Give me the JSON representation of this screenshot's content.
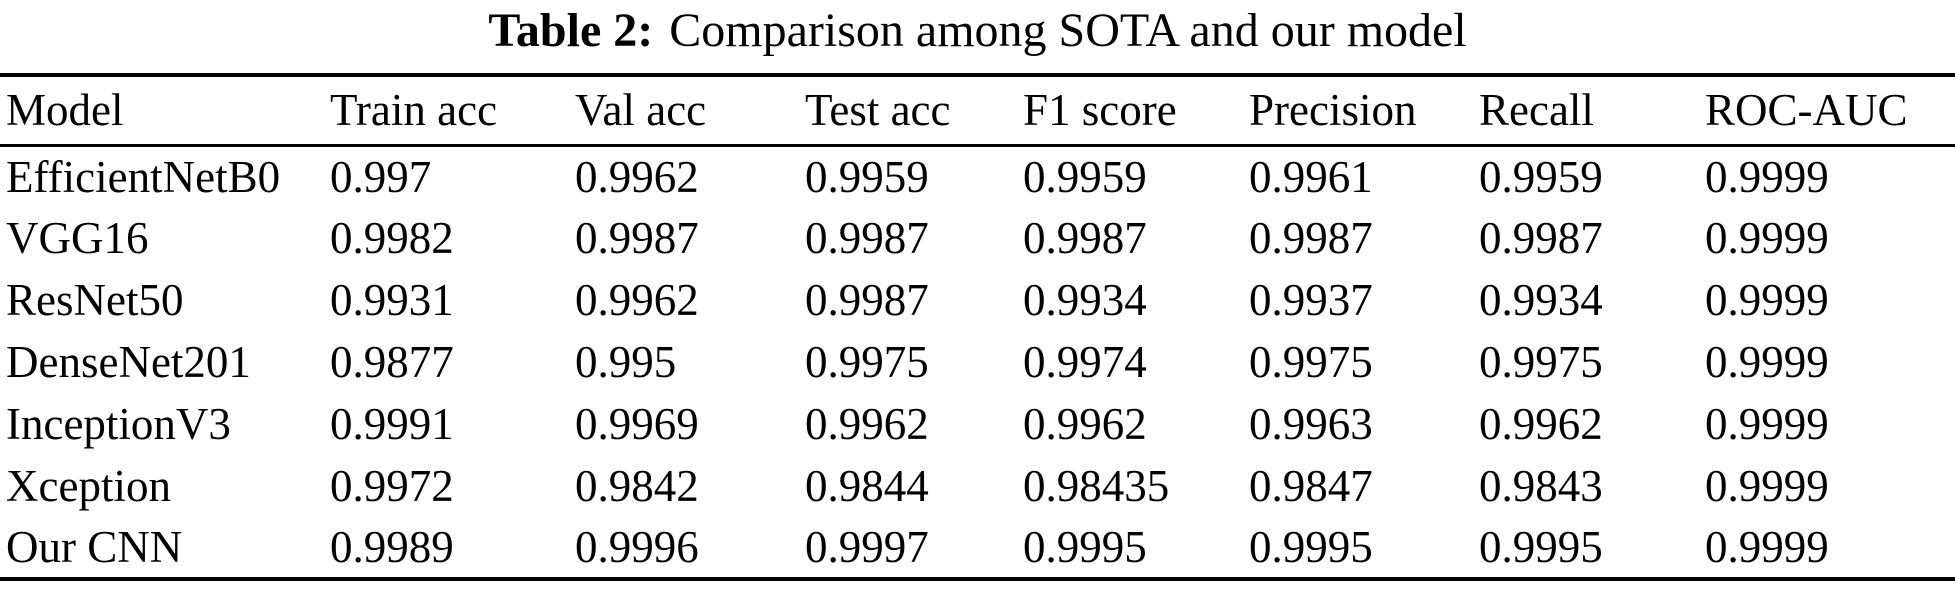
{
  "caption": {
    "label": "Table 2:",
    "text": "Comparison among SOTA and our model"
  },
  "table": {
    "columns": [
      "Model",
      "Train acc",
      "Val acc",
      "Test acc",
      "F1 score",
      "Precision",
      "Recall",
      "ROC-AUC"
    ],
    "rows": [
      {
        "model": "EfficientNetB0",
        "values": [
          "0.997",
          "0.9962",
          "0.9959",
          "0.9959",
          "0.9961",
          "0.9959",
          "0.9999"
        ]
      },
      {
        "model": "VGG16",
        "values": [
          "0.9982",
          "0.9987",
          "0.9987",
          "0.9987",
          "0.9987",
          "0.9987",
          "0.9999"
        ]
      },
      {
        "model": "ResNet50",
        "values": [
          "0.9931",
          "0.9962",
          "0.9987",
          "0.9934",
          "0.9937",
          "0.9934",
          "0.9999"
        ]
      },
      {
        "model": "DenseNet201",
        "values": [
          "0.9877",
          "0.995",
          "0.9975",
          "0.9974",
          "0.9975",
          "0.9975",
          "0.9999"
        ]
      },
      {
        "model": "InceptionV3",
        "values": [
          "0.9991",
          "0.9969",
          "0.9962",
          "0.9962",
          "0.9963",
          "0.9962",
          "0.9999"
        ]
      },
      {
        "model": "Xception",
        "values": [
          "0.9972",
          "0.9842",
          "0.9844",
          "0.98435",
          "0.9847",
          "0.9843",
          "0.9999"
        ]
      },
      {
        "model": "Our CNN",
        "values": [
          "0.9989",
          "0.9996",
          "0.9997",
          "0.9995",
          "0.9995",
          "0.9995",
          "0.9999"
        ]
      }
    ]
  },
  "colors": {
    "text": "#000000",
    "background": "#ffffff",
    "rule": "#000000"
  }
}
